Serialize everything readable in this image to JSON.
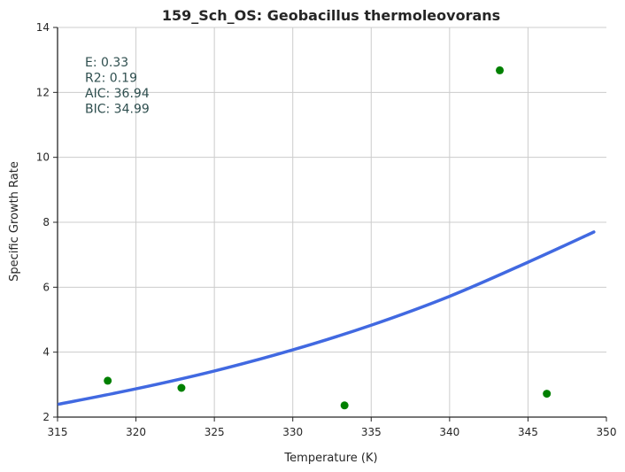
{
  "chart_data": {
    "type": "scatter",
    "title": "159_Sch_OS: Geobacillus thermoleovorans",
    "xlabel": "Temperature (K)",
    "ylabel": "Specific Growth Rate",
    "xlim": [
      315,
      350
    ],
    "ylim": [
      2,
      14
    ],
    "xticks": [
      "315",
      "320",
      "325",
      "330",
      "335",
      "340",
      "345",
      "350"
    ],
    "yticks": [
      "2",
      "4",
      "6",
      "8",
      "10",
      "12",
      "14"
    ],
    "grid": true,
    "annotations": [
      "E:  0.33",
      "R2:  0.19",
      "AIC: 36.94",
      "BIC: 34.99"
    ],
    "points": {
      "color": "#008000",
      "x": [
        318.2,
        322.9,
        333.3,
        343.2,
        346.2
      ],
      "y": [
        3.12,
        2.9,
        2.36,
        12.68,
        2.72
      ]
    },
    "fit_line": {
      "color": "#4169e1",
      "x": [
        315.1,
        320,
        325,
        330,
        335,
        340,
        345,
        349.2
      ],
      "y": [
        2.4,
        2.87,
        3.42,
        4.07,
        4.83,
        5.72,
        6.77,
        7.7
      ]
    }
  }
}
